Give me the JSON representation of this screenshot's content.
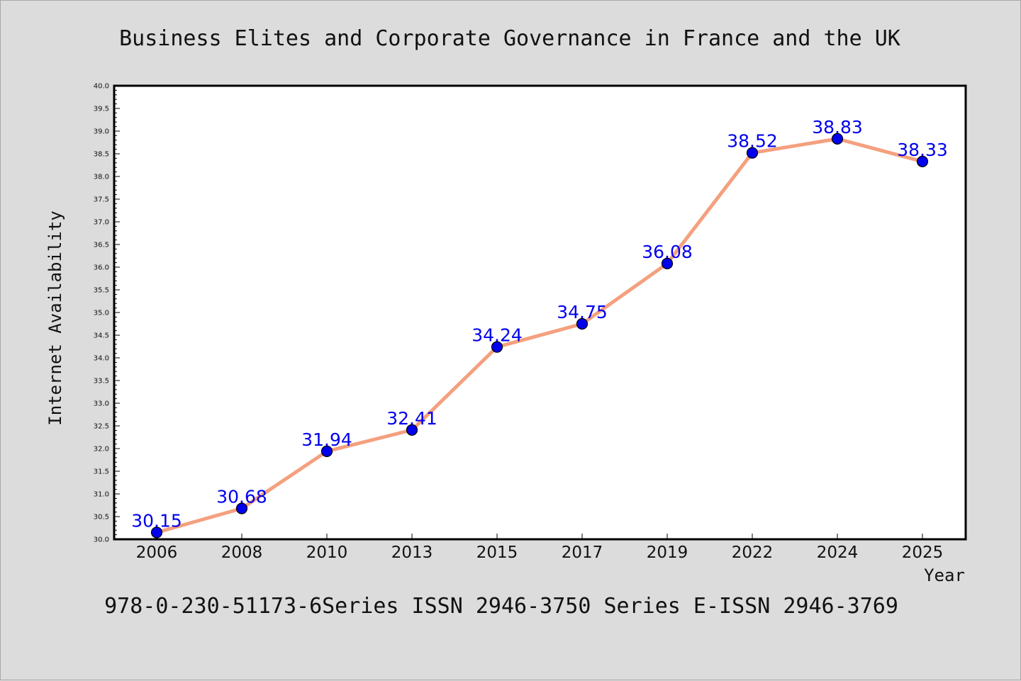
{
  "colors": {
    "background": "#dcdcdc",
    "plot_background": "#ffffff",
    "line": "#f4a07f",
    "marker": "#0000ee",
    "data_label": "#0000ee"
  },
  "footer": "978-0-230-51173-6Series ISSN 2946-3750 Series E-ISSN 2946-3769",
  "chart_data": {
    "type": "line",
    "title": "Business Elites and Corporate Governance in France and the UK",
    "xlabel": "Year",
    "ylabel": "Internet Availability",
    "categories": [
      "2006",
      "2008",
      "2010",
      "2013",
      "2015",
      "2017",
      "2019",
      "2022",
      "2024",
      "2025"
    ],
    "series": [
      {
        "values": [
          30.15,
          30.68,
          31.94,
          32.41,
          34.24,
          34.75,
          36.08,
          38.52,
          38.83,
          38.33
        ],
        "labels": [
          "30.15",
          "30.68",
          "31.94",
          "32.41",
          "34.24",
          "34.75",
          "36.08",
          "38.52",
          "38.83",
          "38.33"
        ]
      }
    ],
    "ylim": [
      30.0,
      40.0
    ],
    "yticks": [
      "30.0",
      "30.5",
      "31.0",
      "31.5",
      "32.0",
      "32.5",
      "33.0",
      "33.5",
      "34.0",
      "34.5",
      "35.0",
      "35.5",
      "36.0",
      "36.5",
      "37.0",
      "37.5",
      "38.0",
      "38.5",
      "39.0",
      "39.5",
      "40.0"
    ],
    "grid": false,
    "legend": "none"
  }
}
